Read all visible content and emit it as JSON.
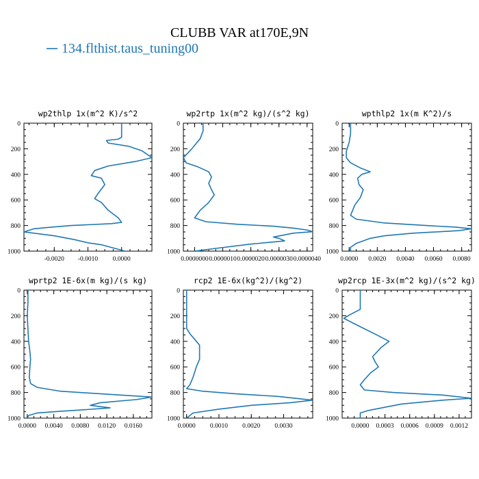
{
  "figure": {
    "title": "CLUBB VAR at170E,9N",
    "legend": "134.flthist.taus_tuning00",
    "line_color": "#1f77b4"
  },
  "chart_data": [
    {
      "type": "line",
      "title": "wp2thlp  1x(m^2 K)/s^2",
      "xlim": [
        -0.0029,
        0.0009
      ],
      "ylim": [
        1000,
        0
      ],
      "xticks": [
        -0.002,
        -0.001,
        0.0
      ],
      "xtick_labels": [
        "-0.0020",
        "-0.0010",
        "0.0000"
      ],
      "yticks": [
        0,
        200,
        400,
        600,
        800,
        1000
      ],
      "ytick_labels": [
        "0",
        "200",
        "400",
        "600",
        "800",
        "1000"
      ],
      "series": [
        {
          "x": [
            0.0,
            0.0,
            0.0,
            -0.0001,
            -0.00045,
            -0.0004,
            0.0002,
            0.0006,
            0.0009,
            0.0004,
            -0.0004,
            -0.0008,
            -0.0009,
            -0.0006,
            -0.0005,
            -0.0007,
            -0.0008,
            -0.0006,
            -0.0004,
            -0.0001,
            0.0,
            -0.0003,
            -0.0015,
            -0.0022,
            -0.0026,
            -0.0029,
            -0.002,
            -0.0014,
            -0.001,
            -0.0006,
            0.0001
          ],
          "y": [
            0,
            70,
            110,
            125,
            135,
            155,
            180,
            215,
            270,
            300,
            335,
            370,
            410,
            430,
            480,
            550,
            590,
            620,
            680,
            740,
            775,
            785,
            800,
            815,
            825,
            850,
            880,
            910,
            935,
            950,
            1000
          ]
        }
      ]
    },
    {
      "type": "line",
      "title": "wp2rtp  1x(m^2 kg)/(s^2 kg)",
      "xlim": [
        -4e-07,
        4.2e-06
      ],
      "ylim": [
        1000,
        0
      ],
      "xticks": [
        0.0,
        1e-06,
        2e-06,
        3e-06,
        4e-06
      ],
      "xtick_labels": [
        "0.0000000",
        "0.0000010",
        "0.0000020",
        "0.0000030",
        "0.0000040"
      ],
      "yticks": [
        0,
        200,
        400,
        600,
        800,
        1000
      ],
      "ytick_labels": [
        "0",
        "200",
        "400",
        "600",
        "800",
        "1000"
      ],
      "series": [
        {
          "x": [
            3e-07,
            3e-07,
            2e-07,
            -1e-07,
            -4e-07,
            -3e-07,
            1e-07,
            5e-07,
            6e-07,
            5e-07,
            6e-07,
            7e-07,
            5e-07,
            2e-07,
            0.0,
            4e-07,
            1.5e-06,
            2.8e-06,
            3.5e-06,
            4e-06,
            4.2e-06,
            3.5e-06,
            2.8e-06,
            3e-06,
            3.2e-06,
            2e-06,
            7e-07,
            0.0
          ],
          "y": [
            0,
            60,
            120,
            200,
            270,
            310,
            340,
            380,
            420,
            470,
            520,
            560,
            620,
            680,
            740,
            770,
            790,
            805,
            820,
            835,
            848,
            860,
            890,
            900,
            920,
            945,
            980,
            1000
          ]
        }
      ]
    },
    {
      "type": "line",
      "title": "wpthlp2  1x(m K^2)/s",
      "xlim": [
        -0.0005,
        0.0087
      ],
      "ylim": [
        1000,
        0
      ],
      "xticks": [
        0.0,
        0.002,
        0.004,
        0.006,
        0.008
      ],
      "xtick_labels": [
        "0.0000",
        "0.0020",
        "0.0040",
        "0.0060",
        "0.0080"
      ],
      "yticks": [
        0,
        200,
        400,
        600,
        800,
        1000
      ],
      "ytick_labels": [
        "0",
        "200",
        "400",
        "600",
        "800",
        "1000"
      ],
      "series": [
        {
          "x": [
            0.0001,
            0.0001,
            0.0,
            -0.0002,
            -0.0002,
            0.0001,
            0.0008,
            0.0015,
            0.0009,
            0.0006,
            0.0007,
            0.001,
            0.0008,
            0.0004,
            0.0001,
            0.0005,
            0.0025,
            0.0055,
            0.0075,
            0.0087,
            0.0078,
            0.0045,
            0.0025,
            0.0015,
            0.0005,
            0.0001,
            0.0001
          ],
          "y": [
            0,
            80,
            150,
            220,
            270,
            310,
            350,
            380,
            400,
            430,
            480,
            520,
            580,
            640,
            720,
            750,
            780,
            800,
            812,
            825,
            840,
            860,
            880,
            900,
            940,
            970,
            1000
          ]
        }
      ]
    },
    {
      "type": "line",
      "title": "wprtp2  1E-6x(m kg)/(s kg)",
      "xlim": [
        -0.0005,
        0.0188
      ],
      "ylim": [
        1000,
        0
      ],
      "xticks": [
        0.0,
        0.004,
        0.008,
        0.012,
        0.016
      ],
      "xtick_labels": [
        "0.0000",
        "0.0040",
        "0.0080",
        "0.0120",
        "0.0160"
      ],
      "yticks": [
        0,
        200,
        400,
        600,
        800,
        1000
      ],
      "ytick_labels": [
        "0",
        "200",
        "400",
        "600",
        "800",
        "1000"
      ],
      "series": [
        {
          "x": [
            0.0001,
            0.0001,
            0.0,
            0.0001,
            0.0002,
            0.0004,
            0.0005,
            0.0004,
            0.0003,
            0.0005,
            0.0015,
            0.005,
            0.011,
            0.0188,
            0.0165,
            0.011,
            0.0095,
            0.0125,
            0.0085,
            0.004,
            0.0015,
            0.0002,
            0.0
          ],
          "y": [
            0,
            100,
            200,
            300,
            400,
            480,
            540,
            600,
            680,
            730,
            760,
            790,
            810,
            835,
            855,
            880,
            900,
            920,
            935,
            950,
            960,
            980,
            1000
          ]
        }
      ]
    },
    {
      "type": "line",
      "title": "rcp2  1E-6x(kg^2)/(kg^2)",
      "xlim": [
        -0.0001,
        0.0039
      ],
      "ylim": [
        1000,
        0
      ],
      "xticks": [
        0.0,
        0.001,
        0.002,
        0.003
      ],
      "xtick_labels": [
        "0.0000",
        "0.0010",
        "0.0020",
        "0.0030"
      ],
      "yticks": [
        0,
        200,
        400,
        600,
        800,
        1000
      ],
      "ytick_labels": [
        "0",
        "200",
        "400",
        "600",
        "800",
        "1000"
      ],
      "series": [
        {
          "x": [
            0.0,
            0.0,
            0.0,
            0.0,
            0.0001,
            0.0002,
            0.0003,
            0.0004,
            0.0004,
            0.0004,
            0.0003,
            0.0002,
            0.0001,
            0.0,
            0.0005,
            0.0015,
            0.0028,
            0.0039,
            0.0032,
            0.002,
            0.001,
            0.0002,
            0.0
          ],
          "y": [
            0,
            100,
            200,
            300,
            340,
            370,
            400,
            430,
            490,
            540,
            600,
            680,
            740,
            770,
            790,
            810,
            830,
            860,
            880,
            900,
            930,
            960,
            1000
          ]
        }
      ]
    },
    {
      "type": "line",
      "title": "wp2rcp  1E-3x(m^2 kg)/(s^2 kg)",
      "xlim": [
        -0.00022,
        0.00135
      ],
      "ylim": [
        1000,
        0
      ],
      "xticks": [
        0.0,
        0.0003,
        0.0006,
        0.0009,
        0.0012
      ],
      "xtick_labels": [
        "0.0000",
        "0.0003",
        "0.0006",
        "0.0009",
        "0.0012"
      ],
      "yticks": [
        0,
        200,
        400,
        600,
        800,
        1000
      ],
      "ytick_labels": [
        "0",
        "200",
        "400",
        "600",
        "800",
        "1000"
      ],
      "series": [
        {
          "x": [
            0.0,
            0.0,
            0.0,
            -0.00012,
            -0.0002,
            -8e-05,
            0.0002,
            0.00035,
            0.00025,
            0.00015,
            0.00018,
            0.00022,
            0.00012,
            5e-05,
            0.0,
            5e-05,
            0.0004,
            0.001,
            0.00135,
            0.001,
            0.0005,
            0.0001,
            0.0,
            0.0
          ],
          "y": [
            0,
            100,
            150,
            190,
            220,
            260,
            350,
            400,
            450,
            520,
            560,
            600,
            650,
            700,
            740,
            780,
            800,
            820,
            845,
            860,
            890,
            940,
            960,
            1000
          ]
        }
      ]
    }
  ]
}
